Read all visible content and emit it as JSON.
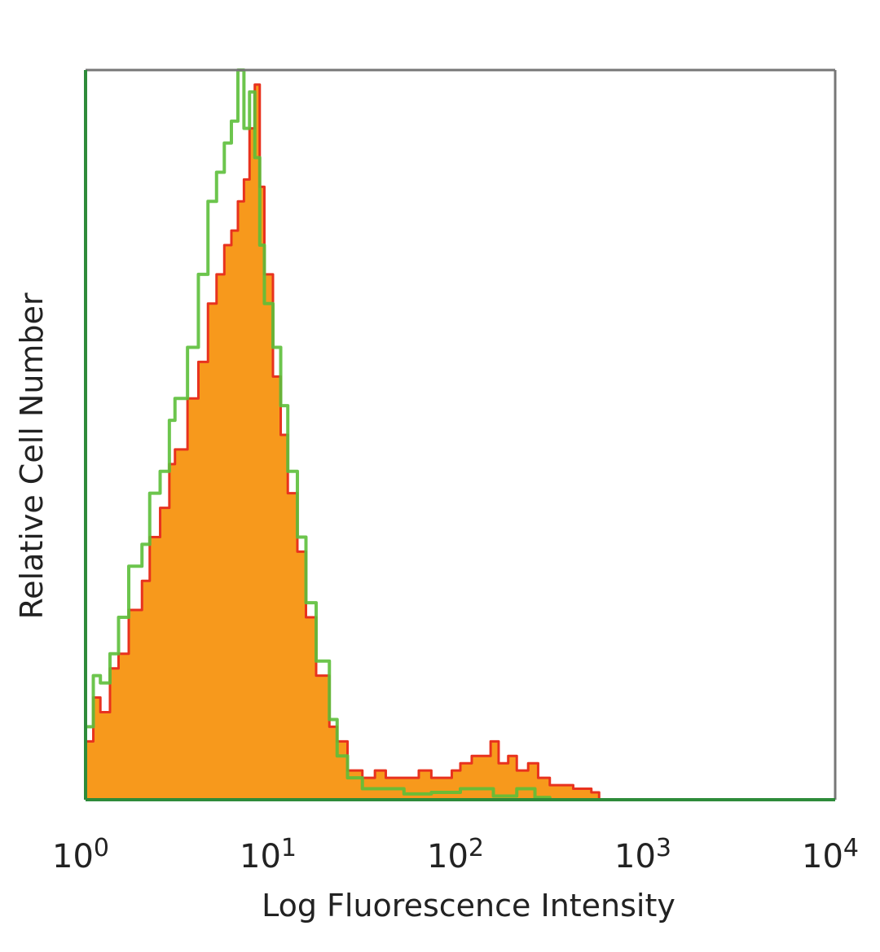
{
  "chart_data": {
    "type": "area",
    "title": "",
    "xlabel": "Log Fluorescence Intensity",
    "ylabel": "Relative Cell Number",
    "xscale": "log",
    "xlim": [
      1,
      10000
    ],
    "ylim": [
      0,
      100
    ],
    "grid": false,
    "x_ticks": [
      {
        "base": "10",
        "exp": "0",
        "value": 1
      },
      {
        "base": "10",
        "exp": "1",
        "value": 10
      },
      {
        "base": "10",
        "exp": "2",
        "value": 100
      },
      {
        "base": "10",
        "exp": "3",
        "value": 1000
      },
      {
        "base": "10",
        "exp": "4",
        "value": 10000
      }
    ],
    "series": [
      {
        "fill_color": "#f7991c",
        "line_color": "#e8321e",
        "filled": true,
        "points": [
          [
            1,
            8
          ],
          [
            1.1,
            14
          ],
          [
            1.2,
            12
          ],
          [
            1.35,
            18
          ],
          [
            1.5,
            20
          ],
          [
            1.7,
            26
          ],
          [
            2,
            30
          ],
          [
            2.2,
            36
          ],
          [
            2.5,
            40
          ],
          [
            2.8,
            46
          ],
          [
            3,
            48
          ],
          [
            3.5,
            55
          ],
          [
            4,
            60
          ],
          [
            4.5,
            68
          ],
          [
            5,
            72
          ],
          [
            5.5,
            76
          ],
          [
            6,
            78
          ],
          [
            6.5,
            82
          ],
          [
            7,
            85
          ],
          [
            7.5,
            92
          ],
          [
            8,
            98
          ],
          [
            8.5,
            84
          ],
          [
            9,
            72
          ],
          [
            10,
            58
          ],
          [
            11,
            50
          ],
          [
            12,
            42
          ],
          [
            13.5,
            34
          ],
          [
            15,
            25
          ],
          [
            17,
            17
          ],
          [
            20,
            10
          ],
          [
            22,
            8
          ],
          [
            25,
            4
          ],
          [
            30,
            3
          ],
          [
            35,
            4
          ],
          [
            40,
            3
          ],
          [
            50,
            3
          ],
          [
            60,
            4
          ],
          [
            70,
            3
          ],
          [
            80,
            3
          ],
          [
            90,
            4
          ],
          [
            100,
            5
          ],
          [
            115,
            6
          ],
          [
            130,
            6
          ],
          [
            145,
            8
          ],
          [
            160,
            5
          ],
          [
            180,
            6
          ],
          [
            200,
            4
          ],
          [
            230,
            5
          ],
          [
            260,
            3
          ],
          [
            300,
            2
          ],
          [
            350,
            2
          ],
          [
            400,
            1.5
          ],
          [
            500,
            1
          ],
          [
            550,
            0
          ]
        ]
      },
      {
        "line_color": "#5cbf3a",
        "filled": false,
        "points": [
          [
            1,
            10
          ],
          [
            1.1,
            17
          ],
          [
            1.2,
            16
          ],
          [
            1.35,
            20
          ],
          [
            1.5,
            25
          ],
          [
            1.7,
            32
          ],
          [
            2,
            35
          ],
          [
            2.2,
            42
          ],
          [
            2.5,
            45
          ],
          [
            2.8,
            52
          ],
          [
            3,
            55
          ],
          [
            3.5,
            62
          ],
          [
            4,
            72
          ],
          [
            4.5,
            82
          ],
          [
            5,
            86
          ],
          [
            5.5,
            90
          ],
          [
            6,
            93
          ],
          [
            6.5,
            100
          ],
          [
            7,
            92
          ],
          [
            7.5,
            97
          ],
          [
            8,
            88
          ],
          [
            8.5,
            76
          ],
          [
            9,
            68
          ],
          [
            10,
            62
          ],
          [
            11,
            54
          ],
          [
            12,
            45
          ],
          [
            13.5,
            36
          ],
          [
            15,
            27
          ],
          [
            17,
            19
          ],
          [
            20,
            11
          ],
          [
            22,
            6
          ],
          [
            25,
            3
          ],
          [
            30,
            1.5
          ],
          [
            40,
            1.5
          ],
          [
            50,
            0.8
          ],
          [
            70,
            1
          ],
          [
            100,
            1.5
          ],
          [
            150,
            0.5
          ],
          [
            200,
            1.5
          ],
          [
            250,
            0.3
          ],
          [
            300,
            0
          ],
          [
            10000,
            0
          ]
        ]
      }
    ]
  },
  "colors": {
    "axis_left_bottom": "#2e8b3a",
    "axis_top_right": "#777777"
  }
}
